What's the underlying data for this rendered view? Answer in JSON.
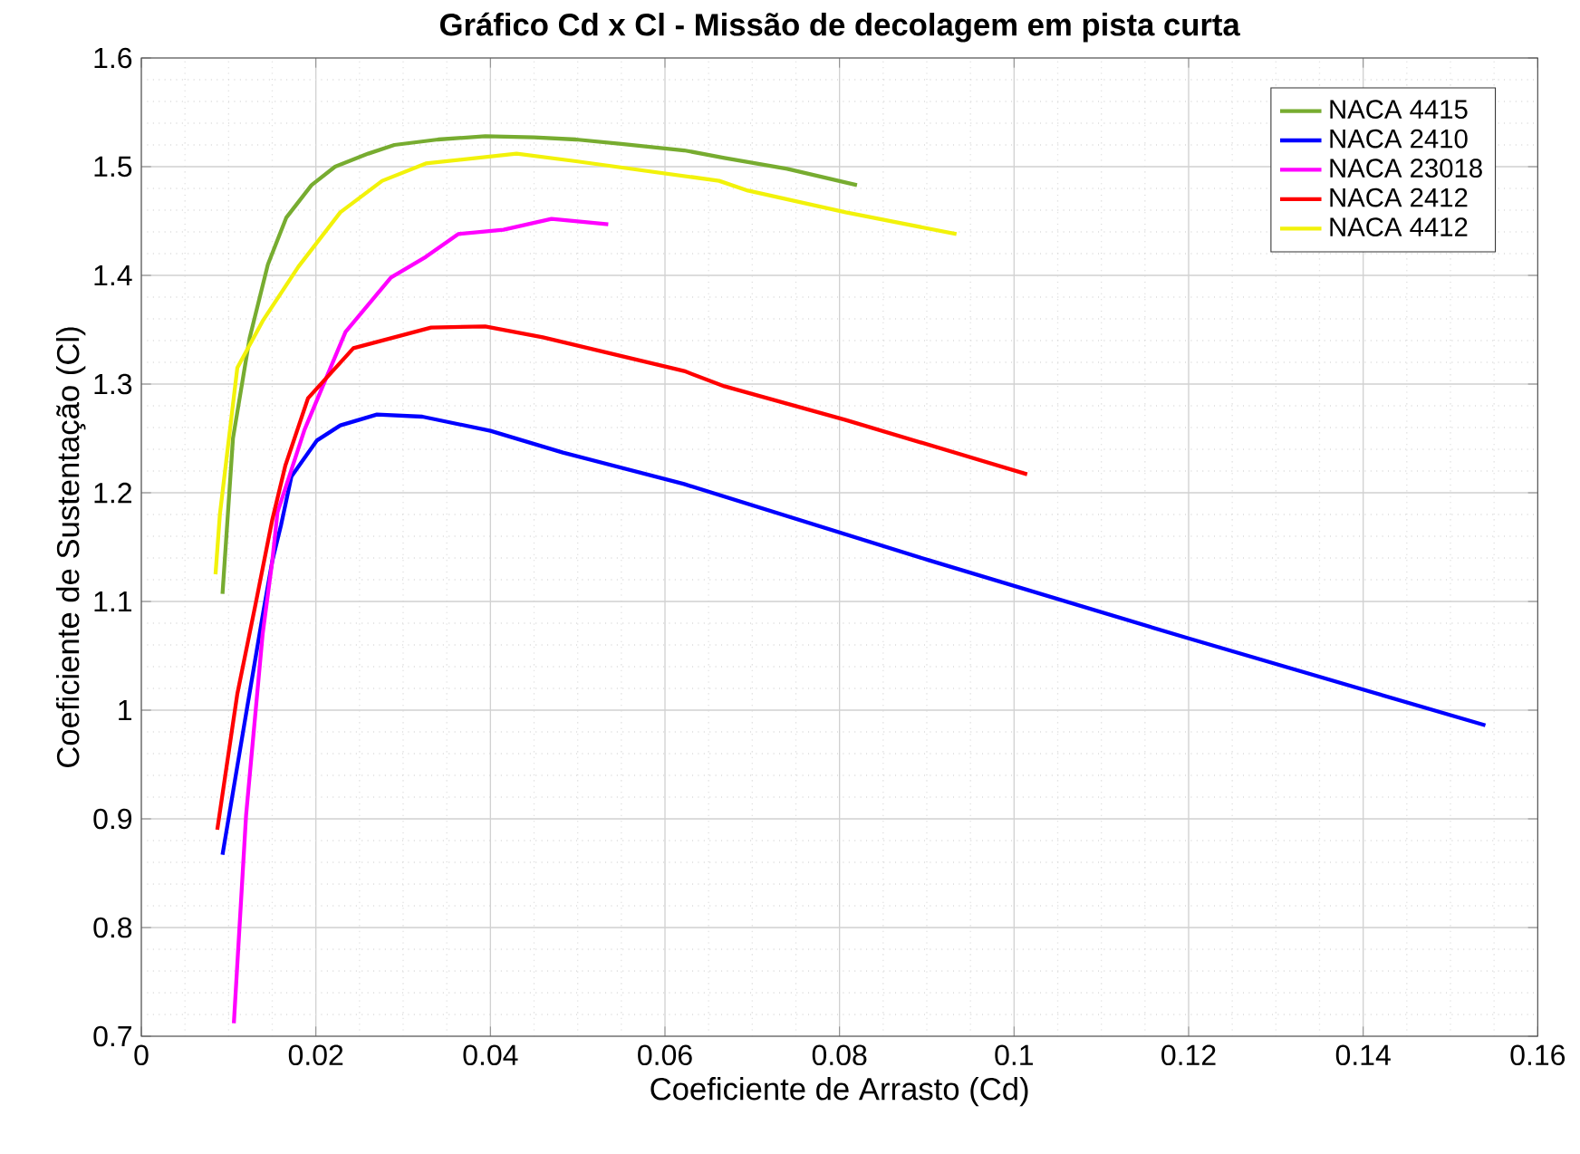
{
  "chart_data": {
    "type": "line",
    "title": "Gráfico Cd x Cl - Missão de decolagem em pista curta",
    "xlabel": "Coeficiente de Arrasto (Cd)",
    "ylabel": "Coeficiente de Sustentação (Cl)",
    "xlim": [
      0,
      0.16
    ],
    "ylim": [
      0.7,
      1.6
    ],
    "xticks": [
      0,
      0.02,
      0.04,
      0.06,
      0.08,
      0.1,
      0.12,
      0.14,
      0.16
    ],
    "yticks": [
      0.7,
      0.8,
      0.9,
      1,
      1.1,
      1.2,
      1.3,
      1.4,
      1.5,
      1.6
    ],
    "grid": true,
    "legend": "top right",
    "line_style": "solid",
    "series": [
      {
        "name": "NACA 4415",
        "color": "#77ac30",
        "x": [
          0.0093,
          0.0105,
          0.0124,
          0.0145,
          0.0166,
          0.0195,
          0.0222,
          0.026,
          0.029,
          0.034,
          0.0394,
          0.045,
          0.0498,
          0.055,
          0.0622,
          0.0668,
          0.074,
          0.082
        ],
        "values": [
          1.107,
          1.25,
          1.342,
          1.41,
          1.453,
          1.483,
          1.5,
          1.512,
          1.52,
          1.525,
          1.528,
          1.527,
          1.525,
          1.521,
          1.515,
          1.508,
          1.498,
          1.483
        ]
      },
      {
        "name": "NACA 2410",
        "color": "#0000ff",
        "x": [
          0.0093,
          0.0118,
          0.0139,
          0.015,
          0.016,
          0.0172,
          0.0201,
          0.0228,
          0.027,
          0.0322,
          0.04,
          0.0483,
          0.0622,
          0.0902,
          0.12,
          0.154
        ],
        "values": [
          0.867,
          0.987,
          1.087,
          1.137,
          1.17,
          1.215,
          1.248,
          1.262,
          1.272,
          1.27,
          1.257,
          1.237,
          1.208,
          1.138,
          1.066,
          0.986
        ]
      },
      {
        "name": "NACA 23018",
        "color": "#ff00ff",
        "x": [
          0.0106,
          0.012,
          0.0139,
          0.015,
          0.0156,
          0.0187,
          0.0234,
          0.0286,
          0.0326,
          0.0363,
          0.0415,
          0.047,
          0.0535
        ],
        "values": [
          0.712,
          0.903,
          1.07,
          1.137,
          1.182,
          1.258,
          1.348,
          1.398,
          1.417,
          1.438,
          1.442,
          1.452,
          1.447
        ]
      },
      {
        "name": "NACA 2412",
        "color": "#ff0000",
        "x": [
          0.0087,
          0.011,
          0.0131,
          0.015,
          0.0165,
          0.0191,
          0.0243,
          0.0332,
          0.0394,
          0.046,
          0.0622,
          0.0668,
          0.0807,
          0.1015
        ],
        "values": [
          0.89,
          1.015,
          1.098,
          1.175,
          1.225,
          1.287,
          1.333,
          1.352,
          1.353,
          1.343,
          1.312,
          1.298,
          1.267,
          1.217
        ]
      },
      {
        "name": "NACA 4412",
        "color": "#f2f20a",
        "x": [
          0.0085,
          0.009,
          0.011,
          0.0139,
          0.018,
          0.0228,
          0.0276,
          0.0326,
          0.043,
          0.0498,
          0.0662,
          0.0695,
          0.0807,
          0.0934
        ],
        "values": [
          1.125,
          1.18,
          1.315,
          1.358,
          1.408,
          1.458,
          1.487,
          1.503,
          1.512,
          1.505,
          1.487,
          1.478,
          1.458,
          1.438
        ]
      }
    ]
  }
}
